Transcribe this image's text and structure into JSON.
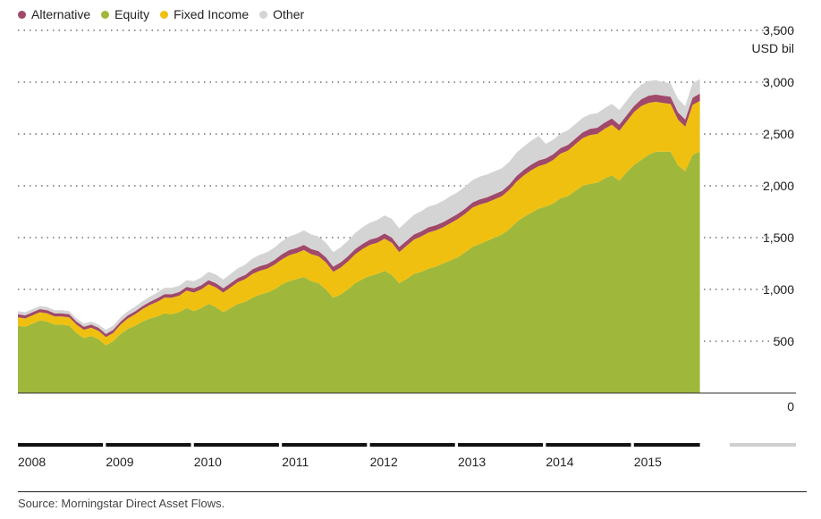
{
  "legend": [
    {
      "label": "Alternative",
      "color": "#a0496a"
    },
    {
      "label": "Equity",
      "color": "#9fb83b"
    },
    {
      "label": "Fixed Income",
      "color": "#f0c010"
    },
    {
      "label": "Other",
      "color": "#d4d4d4"
    }
  ],
  "source": "Source: Morningstar Direct Asset Flows.",
  "chart_data": {
    "type": "area",
    "stacked": true,
    "unit_label": "USD bil",
    "ylim": [
      0,
      3500
    ],
    "yticks": [
      "0",
      "500",
      "1,000",
      "1,500",
      "2,000",
      "2,500",
      "3,000",
      "3,500"
    ],
    "ytick_values": [
      0,
      500,
      1000,
      1500,
      2000,
      2500,
      3000,
      3500
    ],
    "grid": true,
    "legend_position": "top-left",
    "x_period_labels": [
      "2008",
      "2009",
      "2010",
      "2011",
      "2012",
      "2013",
      "2014",
      "2015"
    ],
    "x": [
      "2008-01",
      "2008-02",
      "2008-03",
      "2008-04",
      "2008-05",
      "2008-06",
      "2008-07",
      "2008-08",
      "2008-09",
      "2008-10",
      "2008-11",
      "2008-12",
      "2009-01",
      "2009-02",
      "2009-03",
      "2009-04",
      "2009-05",
      "2009-06",
      "2009-07",
      "2009-08",
      "2009-09",
      "2009-10",
      "2009-11",
      "2009-12",
      "2010-01",
      "2010-02",
      "2010-03",
      "2010-04",
      "2010-05",
      "2010-06",
      "2010-07",
      "2010-08",
      "2010-09",
      "2010-10",
      "2010-11",
      "2010-12",
      "2011-01",
      "2011-02",
      "2011-03",
      "2011-04",
      "2011-05",
      "2011-06",
      "2011-07",
      "2011-08",
      "2011-09",
      "2011-10",
      "2011-11",
      "2011-12",
      "2012-01",
      "2012-02",
      "2012-03",
      "2012-04",
      "2012-05",
      "2012-06",
      "2012-07",
      "2012-08",
      "2012-09",
      "2012-10",
      "2012-11",
      "2012-12",
      "2013-01",
      "2013-02",
      "2013-03",
      "2013-04",
      "2013-05",
      "2013-06",
      "2013-07",
      "2013-08",
      "2013-09",
      "2013-10",
      "2013-11",
      "2013-12",
      "2014-01",
      "2014-02",
      "2014-03",
      "2014-04",
      "2014-05",
      "2014-06",
      "2014-07",
      "2014-08",
      "2014-09",
      "2014-10",
      "2014-11",
      "2014-12",
      "2015-01",
      "2015-02",
      "2015-03",
      "2015-04",
      "2015-05",
      "2015-06",
      "2015-07",
      "2015-08",
      "2015-09",
      "2015-10"
    ],
    "series": [
      {
        "name": "Equity",
        "color": "#9fb83b",
        "values": [
          650,
          640,
          670,
          700,
          690,
          660,
          660,
          650,
          580,
          530,
          550,
          520,
          460,
          500,
          570,
          620,
          650,
          690,
          720,
          740,
          770,
          760,
          780,
          820,
          790,
          820,
          860,
          830,
          780,
          820,
          860,
          880,
          920,
          950,
          970,
          1000,
          1050,
          1080,
          1100,
          1120,
          1080,
          1060,
          1000,
          920,
          950,
          1000,
          1060,
          1100,
          1130,
          1150,
          1180,
          1140,
          1060,
          1100,
          1150,
          1170,
          1200,
          1220,
          1250,
          1280,
          1310,
          1360,
          1410,
          1440,
          1470,
          1500,
          1530,
          1580,
          1650,
          1700,
          1740,
          1780,
          1800,
          1830,
          1880,
          1900,
          1950,
          2000,
          2020,
          2030,
          2070,
          2100,
          2050,
          2130,
          2200,
          2250,
          2300,
          2330,
          2330,
          2330,
          2200,
          2140,
          2300,
          2330
        ]
      },
      {
        "name": "Fixed Income",
        "color": "#f0c010",
        "values": [
          80,
          80,
          80,
          80,
          80,
          80,
          80,
          80,
          80,
          80,
          80,
          80,
          80,
          80,
          90,
          100,
          110,
          120,
          130,
          140,
          150,
          160,
          160,
          170,
          180,
          180,
          190,
          190,
          190,
          200,
          210,
          220,
          230,
          230,
          230,
          240,
          240,
          250,
          250,
          260,
          260,
          260,
          260,
          250,
          260,
          270,
          280,
          290,
          300,
          300,
          310,
          310,
          300,
          320,
          330,
          340,
          350,
          350,
          350,
          360,
          370,
          370,
          380,
          380,
          370,
          370,
          370,
          380,
          390,
          400,
          410,
          410,
          410,
          420,
          430,
          440,
          450,
          460,
          470,
          470,
          480,
          490,
          480,
          490,
          510,
          520,
          500,
          480,
          470,
          460,
          440,
          430,
          480,
          490
        ]
      },
      {
        "name": "Alternative",
        "color": "#a0496a",
        "values": [
          30,
          30,
          30,
          30,
          30,
          30,
          30,
          30,
          30,
          30,
          30,
          30,
          30,
          30,
          30,
          30,
          30,
          30,
          30,
          35,
          35,
          35,
          35,
          35,
          40,
          40,
          40,
          40,
          40,
          40,
          40,
          40,
          45,
          45,
          45,
          45,
          50,
          50,
          50,
          50,
          50,
          50,
          50,
          50,
          50,
          50,
          50,
          50,
          50,
          50,
          50,
          50,
          50,
          50,
          50,
          50,
          50,
          50,
          50,
          50,
          50,
          50,
          50,
          50,
          50,
          50,
          50,
          50,
          55,
          55,
          55,
          55,
          55,
          55,
          55,
          55,
          55,
          55,
          60,
          60,
          60,
          60,
          60,
          60,
          60,
          65,
          70,
          70,
          70,
          70,
          70,
          70,
          70,
          70
        ]
      },
      {
        "name": "Other",
        "color": "#d4d4d4",
        "values": [
          30,
          30,
          30,
          30,
          30,
          30,
          30,
          30,
          30,
          30,
          30,
          30,
          40,
          40,
          40,
          40,
          45,
          45,
          50,
          55,
          60,
          60,
          60,
          65,
          70,
          75,
          80,
          85,
          85,
          90,
          95,
          100,
          105,
          110,
          115,
          120,
          125,
          130,
          135,
          140,
          140,
          140,
          140,
          140,
          145,
          150,
          155,
          160,
          165,
          170,
          175,
          180,
          180,
          185,
          190,
          195,
          200,
          200,
          205,
          210,
          210,
          215,
          215,
          220,
          220,
          220,
          220,
          220,
          225,
          225,
          230,
          235,
          140,
          140,
          140,
          140,
          140,
          140,
          140,
          140,
          140,
          140,
          140,
          140,
          140,
          140,
          140,
          140,
          130,
          130,
          130,
          130,
          140,
          140
        ]
      }
    ]
  }
}
